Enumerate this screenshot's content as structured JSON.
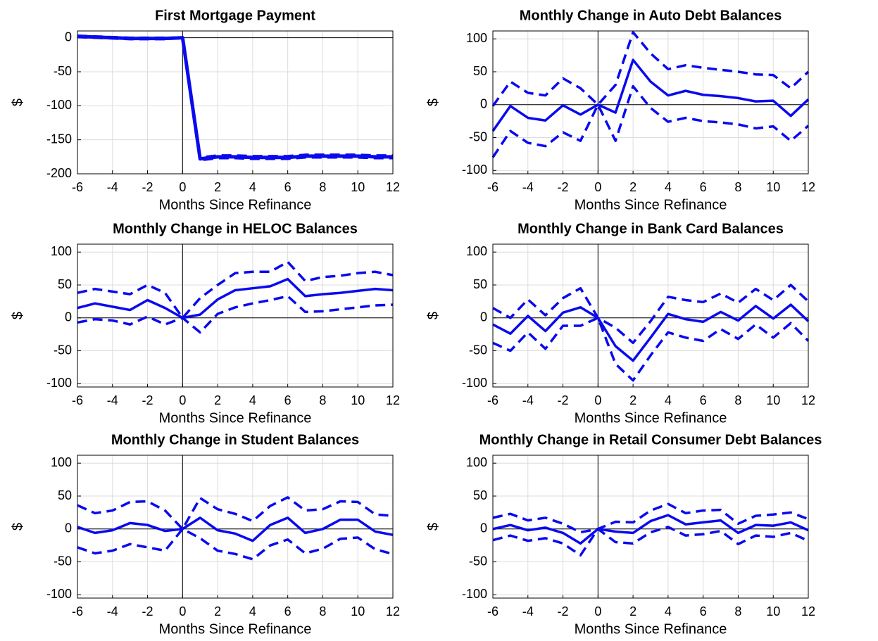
{
  "chart_data": [
    {
      "type": "line",
      "title": "First Mortgage Payment",
      "xlabel": "Months Since Refinance",
      "ylabel": "$",
      "x": [
        -6,
        -5,
        -4,
        -3,
        -2,
        -1,
        0,
        1,
        2,
        3,
        4,
        5,
        6,
        7,
        8,
        9,
        10,
        11,
        12
      ],
      "xlim": [
        -6,
        12
      ],
      "xticks": [
        -6,
        -4,
        -2,
        0,
        2,
        4,
        6,
        8,
        10,
        12
      ],
      "ylim": [
        -200,
        10
      ],
      "yticks": [
        -200,
        -150,
        -100,
        -50,
        0
      ],
      "grid": true,
      "zero_lines": true,
      "series": [
        {
          "color": "#0a0aee",
          "dash": false,
          "values": [
            2,
            1,
            0,
            -1,
            -1,
            -1,
            0,
            -178,
            -175,
            -175,
            -176,
            -176,
            -176,
            -174,
            -174,
            -174,
            -174,
            -175,
            -175
          ]
        },
        {
          "color": "#0a0aee",
          "dash": true,
          "values": [
            3,
            2,
            1,
            0,
            0,
            0,
            0,
            -176,
            -173,
            -173,
            -174,
            -174,
            -174,
            -172,
            -172,
            -172,
            -172,
            -173,
            -173
          ]
        },
        {
          "color": "#0a0aee",
          "dash": true,
          "values": [
            1,
            0,
            -1,
            -2,
            -2,
            -2,
            0,
            -180,
            -177,
            -177,
            -178,
            -178,
            -178,
            -176,
            -176,
            -176,
            -176,
            -177,
            -177
          ]
        }
      ]
    },
    {
      "type": "line",
      "title": "Monthly Change in Auto Debt Balances",
      "xlabel": "Months Since Refinance",
      "ylabel": "$",
      "x": [
        -6,
        -5,
        -4,
        -3,
        -2,
        -1,
        0,
        1,
        2,
        3,
        4,
        5,
        6,
        7,
        8,
        9,
        10,
        11,
        12
      ],
      "xlim": [
        -6,
        12
      ],
      "xticks": [
        -6,
        -4,
        -2,
        0,
        2,
        4,
        6,
        8,
        10,
        12
      ],
      "ylim": [
        -105,
        112
      ],
      "yticks": [
        -100,
        -50,
        0,
        50,
        100
      ],
      "grid": true,
      "zero_lines": true,
      "series": [
        {
          "color": "#0a0aee",
          "dash": false,
          "values": [
            -40,
            -2,
            -20,
            -24,
            -1,
            -15,
            0,
            -12,
            68,
            35,
            14,
            21,
            15,
            13,
            10,
            5,
            6,
            -17,
            8
          ]
        },
        {
          "color": "#0a0aee",
          "dash": true,
          "values": [
            -2,
            35,
            18,
            14,
            40,
            25,
            0,
            30,
            110,
            78,
            54,
            60,
            56,
            53,
            50,
            46,
            45,
            25,
            50
          ]
        },
        {
          "color": "#0a0aee",
          "dash": true,
          "values": [
            -80,
            -40,
            -58,
            -63,
            -42,
            -55,
            0,
            -55,
            28,
            -5,
            -26,
            -20,
            -25,
            -27,
            -30,
            -36,
            -33,
            -55,
            -32
          ]
        }
      ]
    },
    {
      "type": "line",
      "title": "Monthly Change in HELOC Balances",
      "xlabel": "Months Since Refinance",
      "ylabel": "$",
      "x": [
        -6,
        -5,
        -4,
        -3,
        -2,
        -1,
        0,
        1,
        2,
        3,
        4,
        5,
        6,
        7,
        8,
        9,
        10,
        11,
        12
      ],
      "xlim": [
        -6,
        12
      ],
      "xticks": [
        -6,
        -4,
        -2,
        0,
        2,
        4,
        6,
        8,
        10,
        12
      ],
      "ylim": [
        -105,
        112
      ],
      "yticks": [
        -100,
        -50,
        0,
        50,
        100
      ],
      "grid": true,
      "zero_lines": true,
      "series": [
        {
          "color": "#0a0aee",
          "dash": false,
          "values": [
            15,
            22,
            17,
            12,
            27,
            15,
            0,
            5,
            28,
            42,
            45,
            48,
            59,
            33,
            36,
            38,
            41,
            44,
            42
          ]
        },
        {
          "color": "#0a0aee",
          "dash": true,
          "values": [
            38,
            44,
            40,
            36,
            50,
            38,
            0,
            30,
            50,
            68,
            70,
            70,
            85,
            56,
            62,
            64,
            68,
            70,
            65
          ]
        },
        {
          "color": "#0a0aee",
          "dash": true,
          "values": [
            -7,
            -2,
            -4,
            -10,
            2,
            -10,
            0,
            -22,
            6,
            16,
            22,
            27,
            33,
            9,
            10,
            13,
            16,
            19,
            20
          ]
        }
      ]
    },
    {
      "type": "line",
      "title": "Monthly Change in Bank Card Balances",
      "xlabel": "Months Since Refinance",
      "ylabel": "$",
      "x": [
        -6,
        -5,
        -4,
        -3,
        -2,
        -1,
        0,
        1,
        2,
        3,
        4,
        5,
        6,
        7,
        8,
        9,
        10,
        11,
        12
      ],
      "xlim": [
        -6,
        12
      ],
      "xticks": [
        -6,
        -4,
        -2,
        0,
        2,
        4,
        6,
        8,
        10,
        12
      ],
      "ylim": [
        -105,
        112
      ],
      "yticks": [
        -100,
        -50,
        0,
        50,
        100
      ],
      "grid": true,
      "zero_lines": true,
      "series": [
        {
          "color": "#0a0aee",
          "dash": false,
          "values": [
            -10,
            -24,
            3,
            -20,
            8,
            16,
            0,
            -43,
            -65,
            -30,
            6,
            -2,
            -6,
            9,
            -4,
            18,
            -1,
            20,
            -5
          ]
        },
        {
          "color": "#0a0aee",
          "dash": true,
          "values": [
            15,
            0,
            28,
            4,
            30,
            45,
            0,
            -15,
            -38,
            -5,
            32,
            27,
            24,
            37,
            23,
            44,
            27,
            50,
            25
          ]
        },
        {
          "color": "#0a0aee",
          "dash": true,
          "values": [
            -38,
            -50,
            -22,
            -47,
            -12,
            -12,
            0,
            -70,
            -95,
            -57,
            -22,
            -30,
            -35,
            -17,
            -32,
            -10,
            -30,
            -8,
            -35
          ]
        }
      ]
    },
    {
      "type": "line",
      "title": "Monthly Change in Student Balances",
      "xlabel": "Months Since Refinance",
      "ylabel": "$",
      "x": [
        -6,
        -5,
        -4,
        -3,
        -2,
        -1,
        0,
        1,
        2,
        3,
        4,
        5,
        6,
        7,
        8,
        9,
        10,
        11,
        12
      ],
      "xlim": [
        -6,
        12
      ],
      "xticks": [
        -6,
        -4,
        -2,
        0,
        2,
        4,
        6,
        8,
        10,
        12
      ],
      "ylim": [
        -105,
        112
      ],
      "yticks": [
        -100,
        -50,
        0,
        50,
        100
      ],
      "grid": true,
      "zero_lines": true,
      "series": [
        {
          "color": "#0a0aee",
          "dash": false,
          "values": [
            3,
            -6,
            -2,
            9,
            6,
            -3,
            0,
            17,
            -2,
            -7,
            -18,
            6,
            17,
            -6,
            0,
            14,
            14,
            -4,
            -9
          ]
        },
        {
          "color": "#0a0aee",
          "dash": true,
          "values": [
            36,
            24,
            28,
            41,
            42,
            28,
            0,
            47,
            30,
            23,
            12,
            35,
            48,
            28,
            30,
            42,
            41,
            22,
            20
          ]
        },
        {
          "color": "#0a0aee",
          "dash": true,
          "values": [
            -28,
            -37,
            -33,
            -23,
            -28,
            -33,
            0,
            -14,
            -33,
            -38,
            -46,
            -25,
            -16,
            -37,
            -30,
            -15,
            -13,
            -31,
            -38
          ]
        }
      ]
    },
    {
      "type": "line",
      "title": "Monthly Change in Retail Consumer Debt Balances",
      "xlabel": "Months Since Refinance",
      "ylabel": "$",
      "x": [
        -6,
        -5,
        -4,
        -3,
        -2,
        -1,
        0,
        1,
        2,
        3,
        4,
        5,
        6,
        7,
        8,
        9,
        10,
        11,
        12
      ],
      "xlim": [
        -6,
        12
      ],
      "xticks": [
        -6,
        -4,
        -2,
        0,
        2,
        4,
        6,
        8,
        10,
        12
      ],
      "ylim": [
        -105,
        112
      ],
      "yticks": [
        -100,
        -50,
        0,
        50,
        100
      ],
      "grid": true,
      "zero_lines": true,
      "series": [
        {
          "color": "#0a0aee",
          "dash": false,
          "values": [
            0,
            6,
            -2,
            2,
            -6,
            -22,
            0,
            -4,
            -6,
            12,
            21,
            7,
            10,
            13,
            -6,
            6,
            5,
            10,
            -2
          ]
        },
        {
          "color": "#0a0aee",
          "dash": true,
          "values": [
            17,
            23,
            13,
            17,
            8,
            -5,
            0,
            11,
            10,
            28,
            38,
            24,
            28,
            29,
            8,
            20,
            22,
            25,
            15
          ]
        },
        {
          "color": "#0a0aee",
          "dash": true,
          "values": [
            -17,
            -10,
            -18,
            -14,
            -22,
            -40,
            0,
            -20,
            -22,
            -5,
            3,
            -10,
            -8,
            -3,
            -23,
            -10,
            -12,
            -6,
            -18
          ]
        }
      ]
    }
  ]
}
